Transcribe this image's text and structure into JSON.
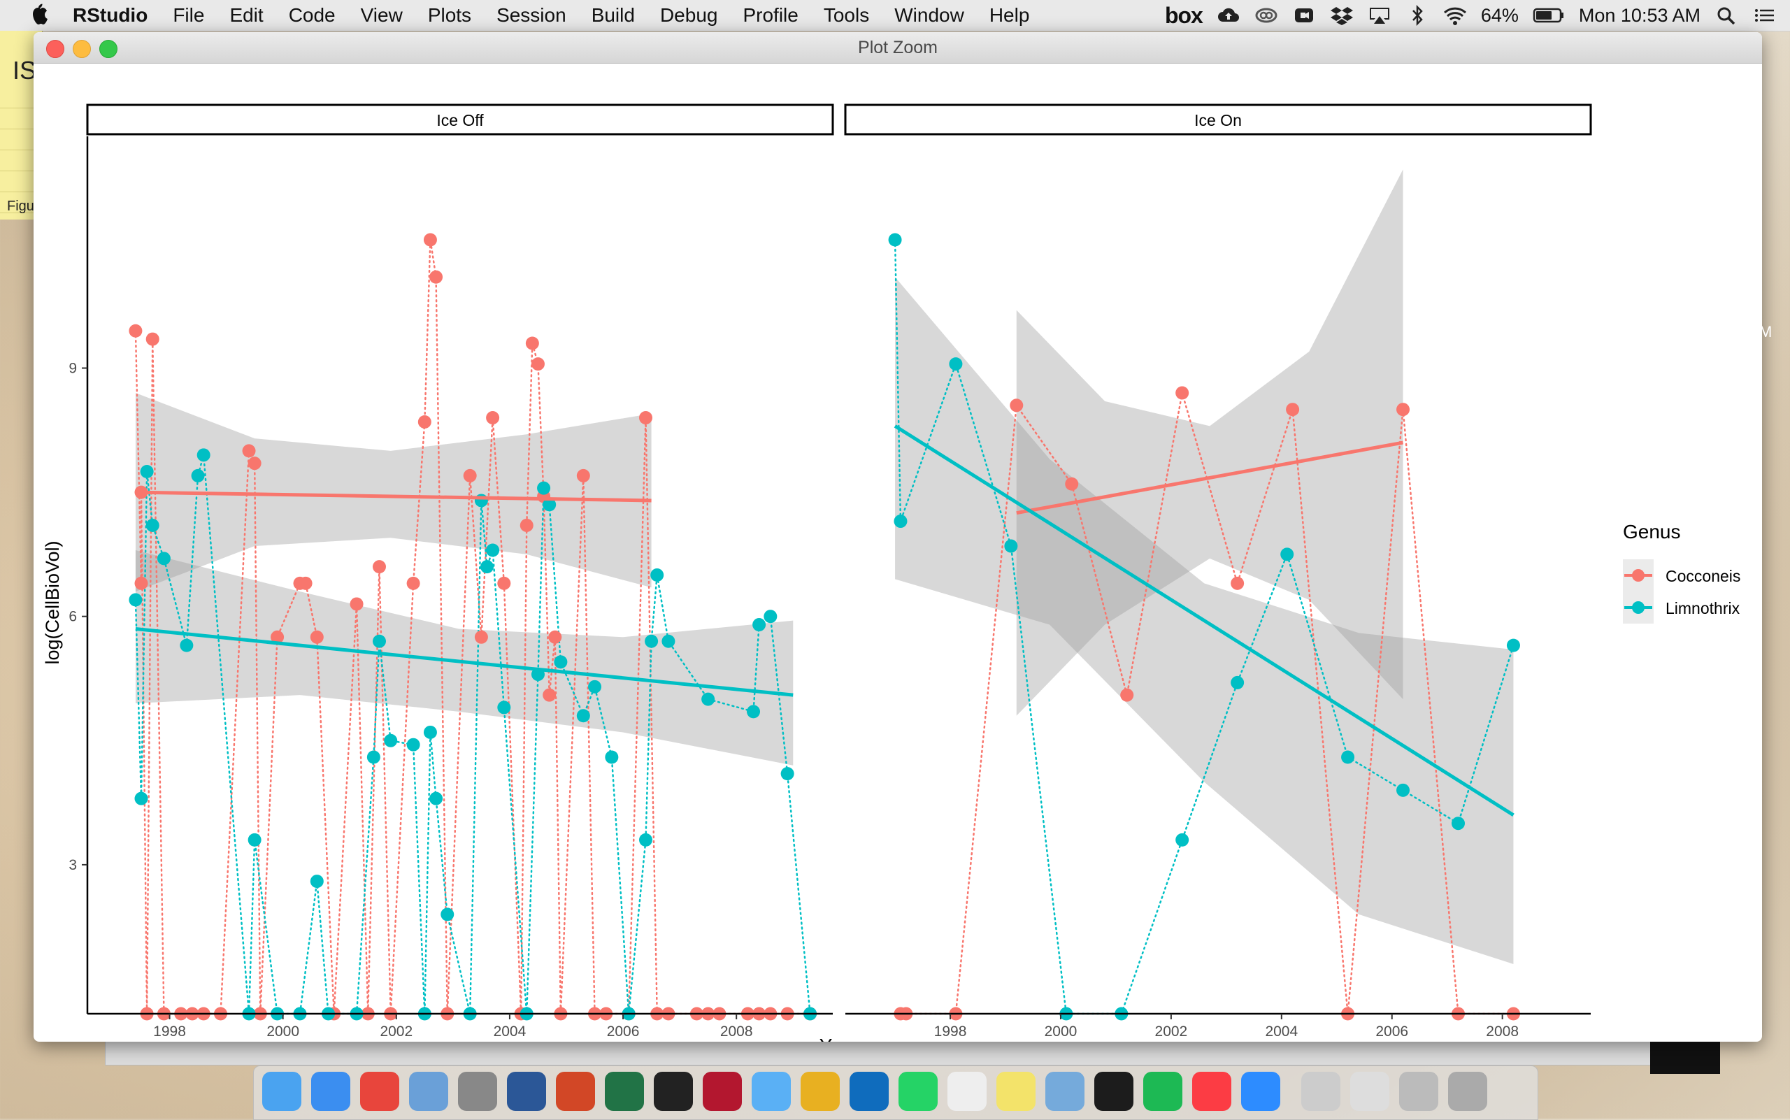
{
  "menubar": {
    "app_name": "RStudio",
    "items": [
      "File",
      "Edit",
      "Code",
      "View",
      "Plots",
      "Session",
      "Build",
      "Debug",
      "Profile",
      "Tools",
      "Window",
      "Help"
    ],
    "status": {
      "box_label": "box",
      "battery": "64%",
      "clock": "Mon 10:53 AM"
    }
  },
  "background": {
    "window_text": "IS",
    "window_text2": "Figu"
  },
  "window": {
    "title": "Plot Zoom"
  },
  "colors": {
    "cocconeis": "#F8766D",
    "limnothrix": "#00BFC4",
    "ribbon": "#999999"
  },
  "dock_icons": [
    "finder-icon",
    "safari-icon",
    "chrome-icon",
    "mail-icon",
    "system-preferences-icon",
    "word-icon",
    "powerpoint-icon",
    "excel-icon",
    "terminal-icon",
    "mendeley-icon",
    "messages-icon",
    "slack-icon",
    "outlook-icon",
    "whatsapp-icon",
    "textedit-icon",
    "stickies-icon",
    "rstudio-icon",
    "quicktime-icon",
    "spotify-icon",
    "itunes-icon",
    "zoom-icon",
    "preview-icon",
    "documents-icon",
    "downloads-icon",
    "trash-icon"
  ],
  "chart_data": {
    "type": "scatter",
    "xlabel": "Year",
    "ylabel": "log(CellBioVol)",
    "x_ticks": [
      "1998",
      "2000",
      "2002",
      "2004",
      "2006",
      "2008"
    ],
    "y_ticks": [
      "3",
      "6",
      "9"
    ],
    "ylim": [
      1.2,
      11.8
    ],
    "legend": {
      "title": "Genus",
      "placement": "right",
      "entries": [
        "Cocconeis",
        "Limnothrix"
      ]
    },
    "panels": [
      {
        "strip": "Ice Off",
        "xlim": [
          1996.55,
          2009.7
        ],
        "series": [
          {
            "name": "Cocconeis",
            "points": [
              [
                1997.4,
                9.45
              ],
              [
                1997.5,
                6.4
              ],
              [
                1997.5,
                7.5
              ],
              [
                1997.6,
                1.2
              ],
              [
                1997.7,
                9.35
              ],
              [
                1997.9,
                1.2
              ],
              [
                1998.2,
                1.2
              ],
              [
                1998.4,
                1.2
              ],
              [
                1998.6,
                1.2
              ],
              [
                1998.9,
                1.2
              ],
              [
                1999.4,
                8.0
              ],
              [
                1999.5,
                7.85
              ],
              [
                1999.6,
                1.2
              ],
              [
                1999.9,
                5.75
              ],
              [
                2000.3,
                6.4
              ],
              [
                2000.4,
                6.4
              ],
              [
                2000.6,
                5.75
              ],
              [
                2000.9,
                1.2
              ],
              [
                2001.3,
                6.15
              ],
              [
                2001.5,
                1.2
              ],
              [
                2001.7,
                6.6
              ],
              [
                2001.9,
                1.2
              ],
              [
                2002.3,
                6.4
              ],
              [
                2002.5,
                8.35
              ],
              [
                2002.6,
                10.55
              ],
              [
                2002.7,
                10.1
              ],
              [
                2002.9,
                1.2
              ],
              [
                2003.3,
                7.7
              ],
              [
                2003.5,
                5.75
              ],
              [
                2003.7,
                8.4
              ],
              [
                2003.9,
                6.4
              ],
              [
                2004.2,
                1.2
              ],
              [
                2004.3,
                7.1
              ],
              [
                2004.4,
                9.3
              ],
              [
                2004.5,
                9.05
              ],
              [
                2004.6,
                7.45
              ],
              [
                2004.7,
                5.05
              ],
              [
                2004.8,
                5.75
              ],
              [
                2004.9,
                1.2
              ],
              [
                2005.3,
                7.7
              ],
              [
                2005.5,
                1.2
              ],
              [
                2005.7,
                1.2
              ],
              [
                2006.1,
                1.2
              ],
              [
                2006.4,
                8.4
              ],
              [
                2006.6,
                1.2
              ],
              [
                2006.8,
                1.2
              ],
              [
                2007.3,
                1.2
              ],
              [
                2007.5,
                1.2
              ],
              [
                2007.7,
                1.2
              ],
              [
                2008.2,
                1.2
              ],
              [
                2008.4,
                1.2
              ],
              [
                2008.6,
                1.2
              ],
              [
                2008.9,
                1.2
              ],
              [
                2009.3,
                1.2
              ]
            ]
          },
          {
            "name": "Limnothrix",
            "points": [
              [
                1997.4,
                6.2
              ],
              [
                1997.5,
                3.8
              ],
              [
                1997.6,
                7.75
              ],
              [
                1997.7,
                7.1
              ],
              [
                1997.9,
                6.7
              ],
              [
                1998.3,
                5.65
              ],
              [
                1998.5,
                7.7
              ],
              [
                1998.6,
                7.95
              ],
              [
                1999.4,
                1.2
              ],
              [
                1999.5,
                3.3
              ],
              [
                1999.9,
                1.2
              ],
              [
                2000.3,
                1.2
              ],
              [
                2000.6,
                2.8
              ],
              [
                2000.8,
                1.2
              ],
              [
                2001.3,
                1.2
              ],
              [
                2001.6,
                4.3
              ],
              [
                2001.7,
                5.7
              ],
              [
                2001.9,
                4.5
              ],
              [
                2002.3,
                4.45
              ],
              [
                2002.5,
                1.2
              ],
              [
                2002.6,
                4.6
              ],
              [
                2002.7,
                3.8
              ],
              [
                2002.9,
                2.4
              ],
              [
                2003.3,
                1.2
              ],
              [
                2003.5,
                7.4
              ],
              [
                2003.6,
                6.6
              ],
              [
                2003.7,
                6.8
              ],
              [
                2003.9,
                4.9
              ],
              [
                2004.3,
                1.2
              ],
              [
                2004.5,
                5.3
              ],
              [
                2004.6,
                7.55
              ],
              [
                2004.7,
                7.35
              ],
              [
                2004.9,
                5.45
              ],
              [
                2005.3,
                4.8
              ],
              [
                2005.5,
                5.15
              ],
              [
                2005.8,
                4.3
              ],
              [
                2006.1,
                1.2
              ],
              [
                2006.4,
                3.3
              ],
              [
                2006.5,
                5.7
              ],
              [
                2006.6,
                6.5
              ],
              [
                2006.8,
                5.7
              ],
              [
                2007.5,
                5.0
              ],
              [
                2008.3,
                4.85
              ],
              [
                2008.4,
                5.9
              ],
              [
                2008.6,
                6.0
              ],
              [
                2008.9,
                4.1
              ],
              [
                2009.3,
                1.2
              ]
            ]
          }
        ],
        "trend_lines": [
          {
            "name": "Cocconeis",
            "x": [
              1997.4,
              2006.5
            ],
            "y": [
              7.5,
              7.4
            ],
            "ribbon_upper": [
              [
                1997.4,
                8.7
              ],
              [
                1999.5,
                8.15
              ],
              [
                2001.9,
                8.0
              ],
              [
                2004.3,
                8.2
              ],
              [
                2006.5,
                8.45
              ]
            ],
            "ribbon_lower": [
              [
                1997.4,
                6.3
              ],
              [
                1999.5,
                6.85
              ],
              [
                2001.9,
                6.95
              ],
              [
                2004.3,
                6.75
              ],
              [
                2006.5,
                6.35
              ]
            ]
          },
          {
            "name": "Limnothrix",
            "x": [
              1997.4,
              2009.0
            ],
            "y": [
              5.85,
              5.05
            ],
            "ribbon_upper": [
              [
                1997.4,
                6.8
              ],
              [
                2000.3,
                6.3
              ],
              [
                2003.1,
                5.85
              ],
              [
                2006.0,
                5.75
              ],
              [
                2009.0,
                5.95
              ]
            ],
            "ribbon_lower": [
              [
                1997.4,
                4.95
              ],
              [
                2000.3,
                5.05
              ],
              [
                2003.1,
                4.85
              ],
              [
                2006.0,
                4.6
              ],
              [
                2009.0,
                4.2
              ]
            ]
          }
        ]
      },
      {
        "strip": "Ice On",
        "xlim": [
          1996.1,
          2009.6
        ],
        "series": [
          {
            "name": "Cocconeis",
            "points": [
              [
                1997.1,
                1.2
              ],
              [
                1997.2,
                1.2
              ],
              [
                1998.1,
                1.2
              ],
              [
                1999.2,
                8.55
              ],
              [
                2000.2,
                7.6
              ],
              [
                2001.2,
                5.05
              ],
              [
                2002.2,
                8.7
              ],
              [
                2003.2,
                6.4
              ],
              [
                2004.2,
                8.5
              ],
              [
                2005.2,
                1.2
              ],
              [
                2006.2,
                8.5
              ],
              [
                2007.2,
                1.2
              ],
              [
                2008.2,
                1.2
              ]
            ]
          },
          {
            "name": "Limnothrix",
            "points": [
              [
                1997.0,
                10.55
              ],
              [
                1997.1,
                7.15
              ],
              [
                1998.1,
                9.05
              ],
              [
                1999.1,
                6.85
              ],
              [
                2000.1,
                1.2
              ],
              [
                2001.1,
                1.2
              ],
              [
                2002.2,
                3.3
              ],
              [
                2003.2,
                5.2
              ],
              [
                2004.1,
                6.75
              ],
              [
                2005.2,
                4.3
              ],
              [
                2006.2,
                3.9
              ],
              [
                2007.2,
                3.5
              ],
              [
                2008.2,
                5.65
              ]
            ]
          }
        ],
        "trend_lines": [
          {
            "name": "Cocconeis",
            "x": [
              1999.2,
              2006.2
            ],
            "y": [
              7.25,
              8.1
            ],
            "ribbon_upper": [
              [
                1999.2,
                9.7
              ],
              [
                2000.8,
                8.6
              ],
              [
                2002.7,
                8.3
              ],
              [
                2004.5,
                9.2
              ],
              [
                2006.2,
                11.4
              ]
            ],
            "ribbon_lower": [
              [
                1999.2,
                4.8
              ],
              [
                2000.8,
                5.9
              ],
              [
                2002.7,
                6.7
              ],
              [
                2004.5,
                6.2
              ],
              [
                2006.2,
                5.0
              ]
            ]
          },
          {
            "name": "Limnothrix",
            "x": [
              1997.0,
              2008.2
            ],
            "y": [
              8.3,
              3.6
            ],
            "ribbon_upper": [
              [
                1997.0,
                10.1
              ],
              [
                1999.8,
                7.9
              ],
              [
                2002.6,
                6.4
              ],
              [
                2005.4,
                5.8
              ],
              [
                2008.2,
                5.6
              ]
            ],
            "ribbon_lower": [
              [
                1997.0,
                6.45
              ],
              [
                1999.8,
                5.9
              ],
              [
                2002.6,
                4.0
              ],
              [
                2005.4,
                2.4
              ],
              [
                2008.2,
                1.8
              ]
            ]
          }
        ]
      }
    ]
  }
}
